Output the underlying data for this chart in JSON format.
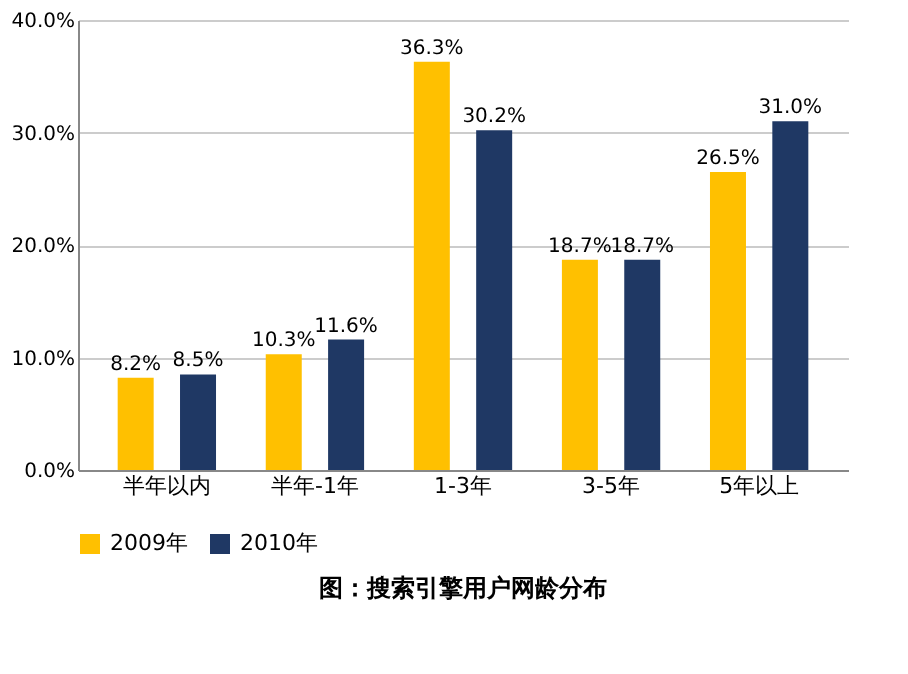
{
  "chart_data": {
    "type": "bar",
    "title": "图：搜索引擎用户网龄分布",
    "categories": [
      "半年以内",
      "半年-1年",
      "1-3年",
      "3-5年",
      "5年以上"
    ],
    "series": [
      {
        "name": "2009年",
        "color": "#ffc000",
        "values": [
          8.2,
          10.3,
          36.3,
          18.7,
          26.5
        ],
        "value_labels": [
          "8.2%",
          "10.3%",
          "36.3%",
          "18.7%",
          "26.5%"
        ]
      },
      {
        "name": "2010年",
        "color": "#1f3864",
        "values": [
          8.5,
          11.6,
          30.2,
          18.7,
          31.0
        ],
        "value_labels": [
          "8.5%",
          "11.6%",
          "30.2%",
          "18.7%",
          "31.0%"
        ]
      }
    ],
    "ylim": [
      0,
      40
    ],
    "yticks": [
      {
        "value": 0,
        "label": "0.0%"
      },
      {
        "value": 10,
        "label": "10.0%"
      },
      {
        "value": 20,
        "label": "20.0%"
      },
      {
        "value": 30,
        "label": "30.0%"
      },
      {
        "value": 40,
        "label": "40.0%"
      }
    ],
    "grid": "y",
    "legend": "bottom"
  }
}
